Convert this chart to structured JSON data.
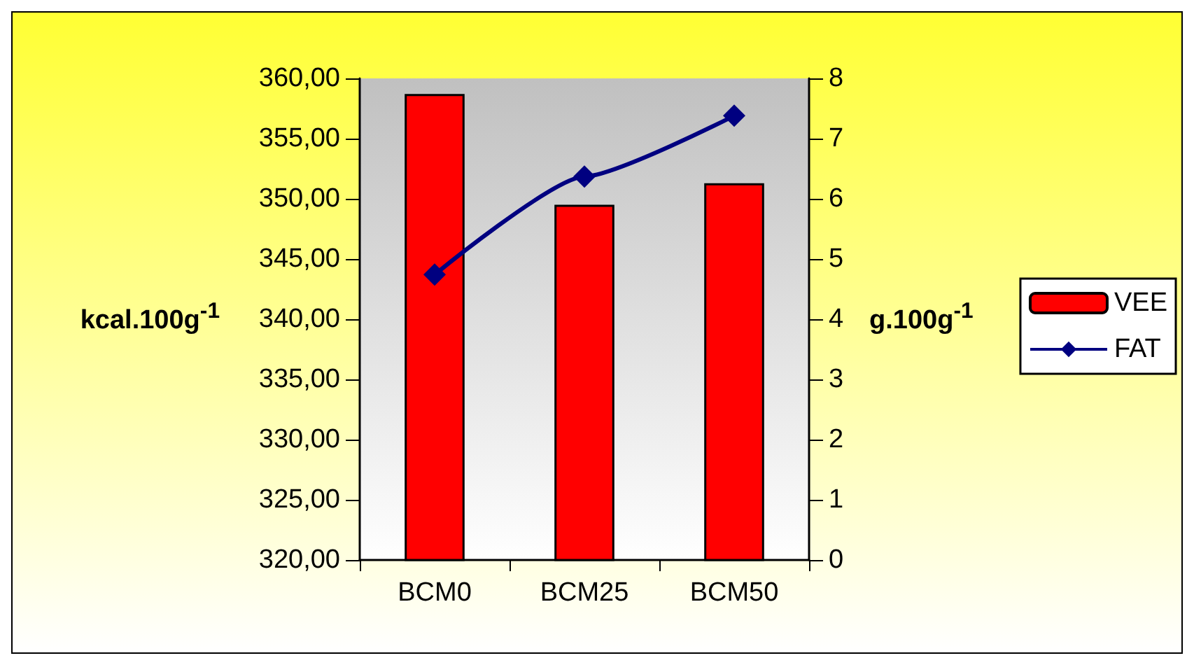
{
  "chart_data": {
    "type": "bar",
    "categories": [
      "BCM0",
      "BCM25",
      "BCM50"
    ],
    "series": [
      {
        "name": "VEE",
        "color": "#ff0000",
        "values": [
          358.7,
          349.5,
          351.3
        ]
      },
      {
        "name": "FAT",
        "type": "line",
        "axis": "y2",
        "color": "#000080",
        "values": [
          4.74,
          6.37,
          7.38
        ]
      }
    ],
    "ylabel": "kcal.100g$^{-1}$",
    "y2label": "g.100g$^{-1}$",
    "ylim": [
      320,
      360
    ],
    "yticks": [
      {
        "value": 320,
        "label": "320,00"
      },
      {
        "value": 325,
        "label": "325,00"
      },
      {
        "value": 330,
        "label": "330,00"
      },
      {
        "value": 335,
        "label": "335,00"
      },
      {
        "value": 340,
        "label": "340,00"
      },
      {
        "value": 345,
        "label": "345,00"
      },
      {
        "value": 350,
        "label": "350,00"
      },
      {
        "value": 355,
        "label": "355,00"
      },
      {
        "value": 360,
        "label": "360,00"
      }
    ],
    "y2lim": [
      0,
      8
    ],
    "y2ticks": [
      0,
      1,
      2,
      3,
      4,
      5,
      6,
      7,
      8
    ],
    "marker": "diamond",
    "line_style": "solid",
    "legend": "right",
    "grid": false
  }
}
